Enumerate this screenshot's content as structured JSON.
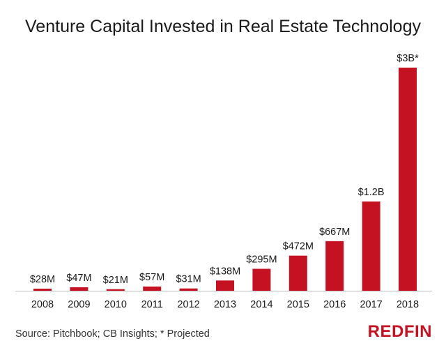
{
  "chart_data": {
    "type": "bar",
    "title": "Venture Capital Invested in Real Estate Technology",
    "categories": [
      "2008",
      "2009",
      "2010",
      "2011",
      "2012",
      "2013",
      "2014",
      "2015",
      "2016",
      "2017",
      "2018"
    ],
    "values": [
      28,
      47,
      21,
      57,
      31,
      138,
      295,
      472,
      667,
      1200,
      3000
    ],
    "value_unit": "millions of US dollars",
    "data_labels": [
      "$28M",
      "$47M",
      "$21M",
      "$57M",
      "$31M",
      "$138M",
      "$295M",
      "$472M",
      "$667M",
      "$1.2B",
      "$3B*"
    ],
    "ylim": [
      0,
      3000
    ],
    "grid": false,
    "legend": "none",
    "bar_color": "#c41222"
  },
  "footer": {
    "source": "Source: Pitchbook; CB Insights; * Projected",
    "logo_text": "REDFIN"
  },
  "colors": {
    "bar": "#c41222",
    "axis": "#bfbfbf",
    "logo": "#c41222"
  }
}
